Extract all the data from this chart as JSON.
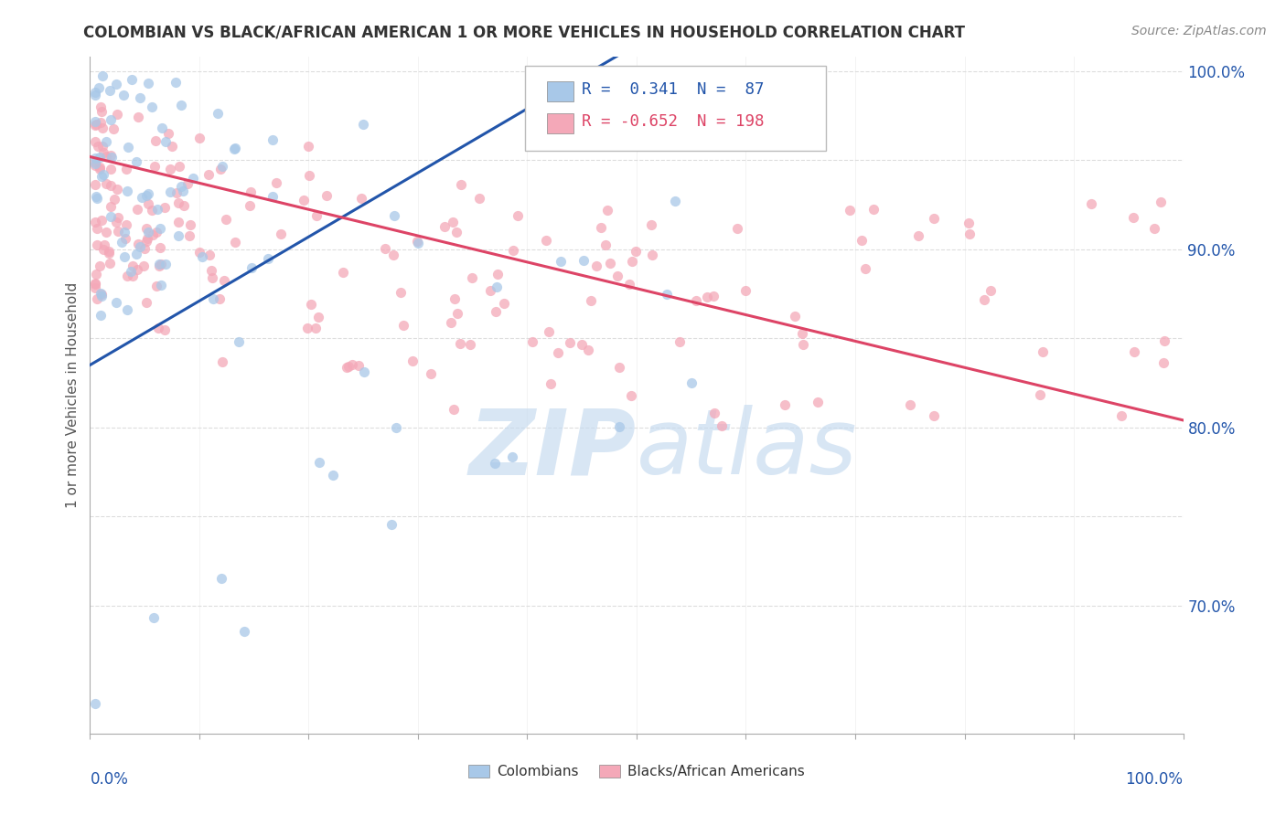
{
  "title": "COLOMBIAN VS BLACK/AFRICAN AMERICAN 1 OR MORE VEHICLES IN HOUSEHOLD CORRELATION CHART",
  "source": "Source: ZipAtlas.com",
  "ylabel": "1 or more Vehicles in Household",
  "xmin": 0.0,
  "xmax": 1.0,
  "ymin": 0.628,
  "ymax": 1.008,
  "ytick_vals": [
    0.7,
    0.8,
    0.9,
    1.0
  ],
  "ytick_labels": [
    "70.0%",
    "80.0%",
    "90.0%",
    "100.0%"
  ],
  "blue_R": 0.341,
  "blue_N": 87,
  "pink_R": -0.652,
  "pink_N": 198,
  "blue_color": "#A8C8E8",
  "pink_color": "#F4A8B8",
  "blue_line_color": "#2255AA",
  "pink_line_color": "#DD4466",
  "legend_label_blue": "Colombians",
  "legend_label_pink": "Blacks/African Americans",
  "watermark_color": "#C8DCF0",
  "background_color": "#FFFFFF",
  "grid_color": "#DDDDDD",
  "title_color": "#333333",
  "source_color": "#888888",
  "axis_label_color": "#2255AA"
}
